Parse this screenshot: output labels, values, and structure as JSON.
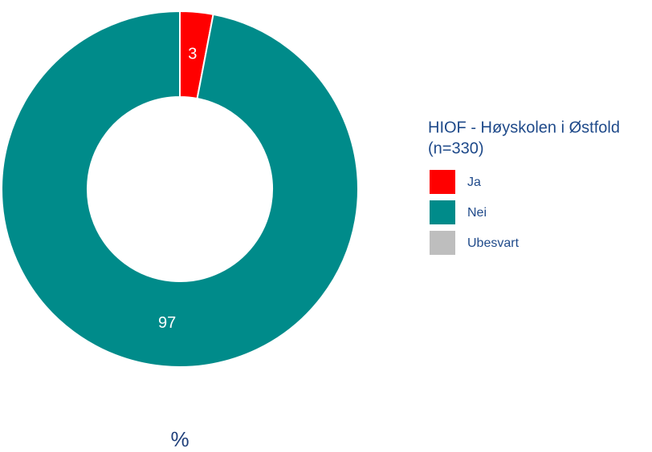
{
  "chart_data": {
    "type": "donut",
    "legend_title": [
      "HIOF - Høyskolen i Østfold",
      "(n=330)"
    ],
    "categories": [
      "Ja",
      "Nei",
      "Ubesvart"
    ],
    "values": [
      3,
      97,
      0
    ],
    "colors": [
      "#ff0000",
      "#008b8a",
      "#bebebe"
    ],
    "x_label": "%",
    "legend": "right"
  }
}
